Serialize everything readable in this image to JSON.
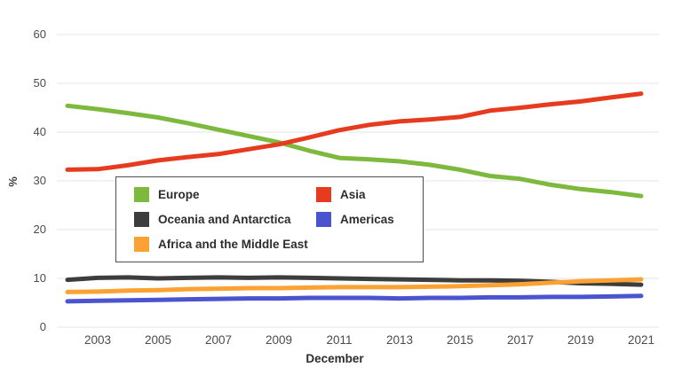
{
  "axis": {
    "y_title": "%",
    "x_title": "December"
  },
  "chart_data": {
    "type": "line",
    "title": "",
    "xlabel": "December",
    "ylabel": "%",
    "ylim": [
      0,
      60
    ],
    "xlim": [
      2002,
      2021
    ],
    "grid": "horizontal",
    "x": [
      2002,
      2003,
      2004,
      2005,
      2006,
      2007,
      2008,
      2009,
      2010,
      2011,
      2012,
      2013,
      2014,
      2015,
      2016,
      2017,
      2018,
      2019,
      2020,
      2021
    ],
    "x_ticks": [
      2003,
      2005,
      2007,
      2009,
      2011,
      2013,
      2015,
      2017,
      2019,
      2021
    ],
    "y_ticks": [
      0,
      10,
      20,
      30,
      40,
      50,
      60
    ],
    "series": [
      {
        "name": "Europe",
        "color": "#7CB93D",
        "values": [
          45.4,
          44.7,
          43.9,
          43.0,
          41.8,
          40.5,
          39.2,
          37.9,
          36.2,
          34.7,
          34.4,
          34.0,
          33.3,
          32.3,
          31.0,
          30.4,
          29.2,
          28.3,
          27.7,
          26.9
        ]
      },
      {
        "name": "Asia",
        "color": "#E73B1F",
        "values": [
          32.3,
          32.4,
          33.2,
          34.2,
          34.9,
          35.5,
          36.5,
          37.5,
          38.9,
          40.4,
          41.5,
          42.2,
          42.6,
          43.1,
          44.4,
          45.0,
          45.7,
          46.3,
          47.1,
          47.9
        ]
      },
      {
        "name": "Oceania and Antarctica",
        "color": "#3D3D3D",
        "values": [
          9.7,
          10.1,
          10.2,
          10.0,
          10.1,
          10.2,
          10.1,
          10.2,
          10.1,
          10.0,
          9.9,
          9.8,
          9.7,
          9.6,
          9.6,
          9.5,
          9.3,
          9.0,
          8.9,
          8.7
        ]
      },
      {
        "name": "Africa and the Middle East",
        "color": "#FCA232",
        "values": [
          7.2,
          7.3,
          7.5,
          7.6,
          7.8,
          7.9,
          8.0,
          8.0,
          8.1,
          8.2,
          8.2,
          8.2,
          8.3,
          8.4,
          8.6,
          8.8,
          9.1,
          9.4,
          9.6,
          9.8
        ]
      },
      {
        "name": "Americas",
        "color": "#4A54CF",
        "values": [
          5.3,
          5.4,
          5.5,
          5.6,
          5.7,
          5.8,
          5.9,
          5.9,
          6.0,
          6.0,
          6.0,
          5.9,
          6.0,
          6.0,
          6.1,
          6.1,
          6.2,
          6.2,
          6.3,
          6.4
        ]
      }
    ],
    "legend": {
      "position": "inside-center-left",
      "columns": [
        [
          "Europe",
          "Oceania and Antarctica",
          "Africa and the Middle East"
        ],
        [
          "Asia",
          "Americas"
        ]
      ]
    }
  }
}
